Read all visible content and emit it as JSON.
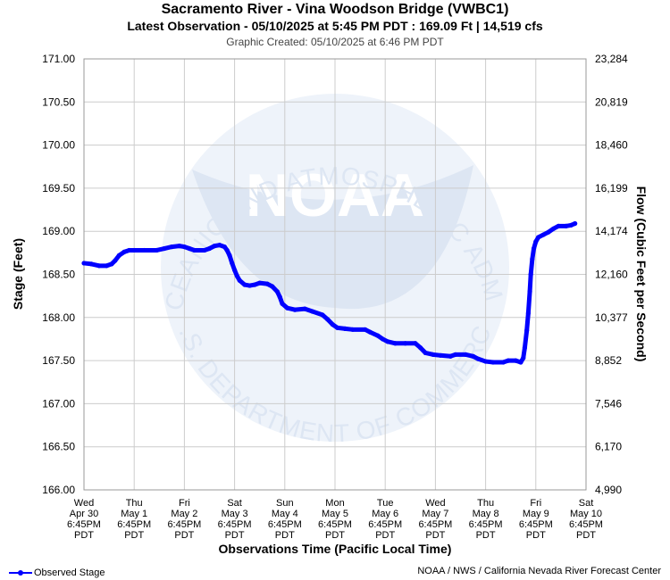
{
  "header": {
    "title": "Sacramento River - Vina Woodson Bridge (VWBC1)",
    "subtitle": "Latest Observation - 05/10/2025 at 5:45 PM PDT : 169.09 Ft | 14,519 cfs",
    "created": "Graphic Created: 05/10/2025 at 6:46 PM PDT"
  },
  "footer": {
    "legend_label": "Observed Stage",
    "credit": "NOAA / NWS / California Nevada River Forecast Center"
  },
  "watermark": {
    "text_top": "NATIONAL OCEANIC AND ATMOSPHERIC ADMINISTRATION",
    "text_bottom": "U.S. DEPARTMENT OF COMMERCE",
    "logo_text": "NOAA"
  },
  "colors": {
    "series": "#0000ff",
    "grid": "#cccccc",
    "watermark": "#dde6f3"
  },
  "chart_data": {
    "type": "line",
    "ylabel": "Stage (Feet)",
    "y2label": "Flow (Cubic Feet per Second)",
    "xlabel": "Observations Time (Pacific Local Time)",
    "ylim": [
      166.0,
      171.0
    ],
    "xlim_days": [
      0,
      10
    ],
    "y_ticks": [
      "171.00",
      "170.50",
      "170.00",
      "169.50",
      "169.00",
      "168.50",
      "168.00",
      "167.50",
      "167.00",
      "166.50",
      "166.00"
    ],
    "y2_ticks": [
      "23,284",
      "20,819",
      "18,460",
      "16,199",
      "14,174",
      "12,160",
      "10,377",
      "8,852",
      "7,546",
      "6,170",
      "4,990"
    ],
    "x_ticks": [
      {
        "day": "Wed",
        "date": "Apr 30",
        "time": "6:45PM",
        "tz": "PDT"
      },
      {
        "day": "Thu",
        "date": "May 1",
        "time": "6:45PM",
        "tz": "PDT"
      },
      {
        "day": "Fri",
        "date": "May 2",
        "time": "6:45PM",
        "tz": "PDT"
      },
      {
        "day": "Sat",
        "date": "May 3",
        "time": "6:45PM",
        "tz": "PDT"
      },
      {
        "day": "Sun",
        "date": "May 4",
        "time": "6:45PM",
        "tz": "PDT"
      },
      {
        "day": "Mon",
        "date": "May 5",
        "time": "6:45PM",
        "tz": "PDT"
      },
      {
        "day": "Tue",
        "date": "May 6",
        "time": "6:45PM",
        "tz": "PDT"
      },
      {
        "day": "Wed",
        "date": "May 7",
        "time": "6:45PM",
        "tz": "PDT"
      },
      {
        "day": "Thu",
        "date": "May 8",
        "time": "6:45PM",
        "tz": "PDT"
      },
      {
        "day": "Fri",
        "date": "May 9",
        "time": "6:45PM",
        "tz": "PDT"
      },
      {
        "day": "Sat",
        "date": "May 10",
        "time": "6:45PM",
        "tz": "PDT"
      }
    ],
    "series": [
      {
        "name": "Observed Stage",
        "points": [
          [
            0.0,
            168.63
          ],
          [
            0.15,
            168.62
          ],
          [
            0.3,
            168.6
          ],
          [
            0.45,
            168.6
          ],
          [
            0.55,
            168.62
          ],
          [
            0.62,
            168.66
          ],
          [
            0.7,
            168.72
          ],
          [
            0.8,
            168.76
          ],
          [
            0.9,
            168.78
          ],
          [
            1.0,
            168.78
          ],
          [
            1.2,
            168.78
          ],
          [
            1.45,
            168.78
          ],
          [
            1.6,
            168.8
          ],
          [
            1.75,
            168.82
          ],
          [
            1.9,
            168.83
          ],
          [
            2.0,
            168.82
          ],
          [
            2.1,
            168.8
          ],
          [
            2.2,
            168.78
          ],
          [
            2.4,
            168.78
          ],
          [
            2.5,
            168.8
          ],
          [
            2.6,
            168.83
          ],
          [
            2.7,
            168.84
          ],
          [
            2.8,
            168.82
          ],
          [
            2.85,
            168.78
          ],
          [
            2.9,
            168.72
          ],
          [
            2.95,
            168.63
          ],
          [
            3.0,
            168.55
          ],
          [
            3.05,
            168.48
          ],
          [
            3.1,
            168.43
          ],
          [
            3.2,
            168.38
          ],
          [
            3.3,
            168.37
          ],
          [
            3.4,
            168.38
          ],
          [
            3.5,
            168.4
          ],
          [
            3.65,
            168.39
          ],
          [
            3.75,
            168.36
          ],
          [
            3.85,
            168.3
          ],
          [
            3.9,
            168.24
          ],
          [
            3.95,
            168.16
          ],
          [
            4.05,
            168.11
          ],
          [
            4.2,
            168.09
          ],
          [
            4.4,
            168.1
          ],
          [
            4.55,
            168.07
          ],
          [
            4.75,
            168.03
          ],
          [
            4.85,
            167.98
          ],
          [
            4.95,
            167.92
          ],
          [
            5.05,
            167.88
          ],
          [
            5.2,
            167.87
          ],
          [
            5.35,
            167.86
          ],
          [
            5.6,
            167.86
          ],
          [
            5.7,
            167.83
          ],
          [
            5.85,
            167.79
          ],
          [
            5.95,
            167.75
          ],
          [
            6.05,
            167.72
          ],
          [
            6.2,
            167.7
          ],
          [
            6.4,
            167.7
          ],
          [
            6.6,
            167.7
          ],
          [
            6.7,
            167.65
          ],
          [
            6.8,
            167.59
          ],
          [
            6.95,
            167.57
          ],
          [
            7.1,
            167.56
          ],
          [
            7.3,
            167.55
          ],
          [
            7.4,
            167.57
          ],
          [
            7.6,
            167.57
          ],
          [
            7.75,
            167.55
          ],
          [
            7.85,
            167.52
          ],
          [
            8.0,
            167.49
          ],
          [
            8.15,
            167.48
          ],
          [
            8.35,
            167.48
          ],
          [
            8.45,
            167.5
          ],
          [
            8.6,
            167.5
          ],
          [
            8.7,
            167.48
          ],
          [
            8.75,
            167.53
          ],
          [
            8.78,
            167.65
          ],
          [
            8.82,
            167.85
          ],
          [
            8.85,
            168.05
          ],
          [
            8.88,
            168.3
          ],
          [
            8.9,
            168.5
          ],
          [
            8.93,
            168.68
          ],
          [
            8.96,
            168.8
          ],
          [
            9.0,
            168.88
          ],
          [
            9.05,
            168.93
          ],
          [
            9.15,
            168.96
          ],
          [
            9.25,
            168.99
          ],
          [
            9.35,
            169.03
          ],
          [
            9.45,
            169.06
          ],
          [
            9.6,
            169.06
          ],
          [
            9.7,
            169.07
          ],
          [
            9.78,
            169.09
          ]
        ]
      }
    ]
  }
}
